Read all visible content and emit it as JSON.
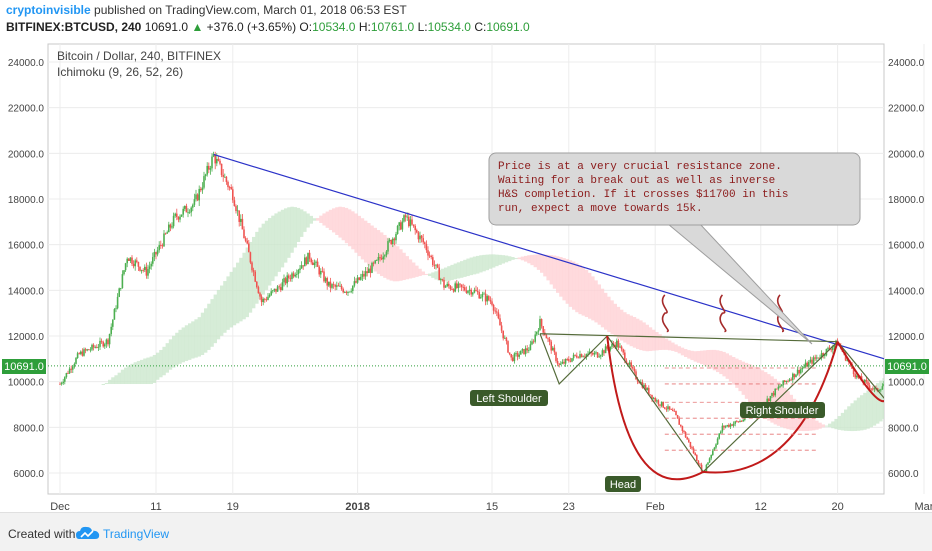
{
  "header": {
    "author": "cryptoinvisible",
    "published": "published on TradingView.com, March 01, 2018 06:53 EST",
    "symbol": "BITFINEX:BTCUSD, 240",
    "last": "10691.0",
    "change": "+376.0 (+3.65%)",
    "o_label": "O:",
    "o_value": "10534.0",
    "h_label": "H:",
    "h_value": "10761.0",
    "l_label": "L:",
    "l_value": "10534.0",
    "c_label": "C:",
    "c_value": "10691.0"
  },
  "legend": {
    "title": "Bitcoin / Dollar, 240, BITFINEX",
    "indicator": "Ichimoku (9, 26, 52, 26)"
  },
  "footer": {
    "created": "Created with",
    "brand": "TradingView"
  },
  "colors": {
    "up": "#4caf50",
    "down": "#ef5350",
    "trendline": "#2b32c8",
    "neckline": "#556b3a",
    "cup": "#c11a1a",
    "price_line": "#2e9e3a",
    "label_bg": "#3a5a2a"
  },
  "chart_data": {
    "type": "candlestick",
    "y_ticks": [
      "6000.0",
      "8000.0",
      "10000.0",
      "12000.0",
      "14000.0",
      "16000.0",
      "18000.0",
      "20000.0",
      "22000.0",
      "24000.0"
    ],
    "ylim": [
      5000,
      25000
    ],
    "x_ticks": [
      "Dec",
      "11",
      "19",
      "2018",
      "15",
      "23",
      "Feb",
      "12",
      "20",
      "Mar"
    ],
    "current_price": "10691.0",
    "price_path": [
      {
        "d": "Dec 1",
        "p": 9900
      },
      {
        "d": "Dec 3",
        "p": 11200
      },
      {
        "d": "Dec 6",
        "p": 11800
      },
      {
        "d": "Dec 8",
        "p": 15500
      },
      {
        "d": "Dec 10",
        "p": 14800
      },
      {
        "d": "Dec 13",
        "p": 17200
      },
      {
        "d": "Dec 15",
        "p": 17800
      },
      {
        "d": "Dec 17",
        "p": 19900
      },
      {
        "d": "Dec 19",
        "p": 18200
      },
      {
        "d": "Dec 22",
        "p": 13500
      },
      {
        "d": "Dec 24",
        "p": 14200
      },
      {
        "d": "Dec 27",
        "p": 15500
      },
      {
        "d": "Dec 29",
        "p": 14200
      },
      {
        "d": "Dec 31",
        "p": 14000
      },
      {
        "d": "Jan 3",
        "p": 15200
      },
      {
        "d": "Jan 6",
        "p": 17200
      },
      {
        "d": "Jan 8",
        "p": 16000
      },
      {
        "d": "Jan 10",
        "p": 14200
      },
      {
        "d": "Jan 13",
        "p": 14000
      },
      {
        "d": "Jan 15",
        "p": 13500
      },
      {
        "d": "Jan 17",
        "p": 11000
      },
      {
        "d": "Jan 19",
        "p": 11500
      },
      {
        "d": "Jan 20",
        "p": 12600
      },
      {
        "d": "Jan 22",
        "p": 10700
      },
      {
        "d": "Jan 24",
        "p": 11200
      },
      {
        "d": "Jan 26",
        "p": 11200
      },
      {
        "d": "Jan 28",
        "p": 11700
      },
      {
        "d": "Jan 30",
        "p": 10200
      },
      {
        "d": "Feb 1",
        "p": 9200
      },
      {
        "d": "Feb 3",
        "p": 8600
      },
      {
        "d": "Feb 5",
        "p": 6900
      },
      {
        "d": "Feb 6",
        "p": 6000
      },
      {
        "d": "Feb 8",
        "p": 8000
      },
      {
        "d": "Feb 10",
        "p": 8300
      },
      {
        "d": "Feb 12",
        "p": 8900
      },
      {
        "d": "Feb 14",
        "p": 9800
      },
      {
        "d": "Feb 16",
        "p": 10500
      },
      {
        "d": "Feb 18",
        "p": 11100
      },
      {
        "d": "Feb 20",
        "p": 11700
      },
      {
        "d": "Feb 22",
        "p": 10200
      },
      {
        "d": "Feb 24",
        "p": 9600
      },
      {
        "d": "Feb 26",
        "p": 10300
      },
      {
        "d": "Feb 28",
        "p": 10691
      }
    ],
    "annotations": [
      "Price is at a very crucial resistance zone.",
      "Waiting for a break out as well as inverse",
      "H&S completion. If it crosses $11700 in this",
      "run, expect a move towards 15k."
    ],
    "labels": {
      "left_shoulder": "Left Shoulder",
      "head": "Head",
      "right_shoulder": "Right Shoulder"
    }
  }
}
